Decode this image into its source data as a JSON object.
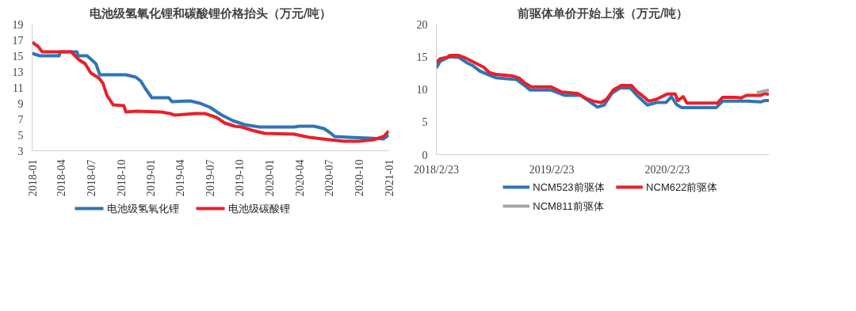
{
  "chart_data": [
    {
      "type": "line",
      "title": "电池级氢氧化锂和碳酸锂价格抬头（万元/吨）",
      "legend": "bottom",
      "grid": false,
      "marker": "none",
      "line_style": "solid",
      "xlim": [
        "2018-01-01",
        "2021-01-01"
      ],
      "xticks": [
        {
          "value": "2018-01-01",
          "label": "2018-01"
        },
        {
          "value": "2018-04-01",
          "label": "2018-04"
        },
        {
          "value": "2018-07-01",
          "label": "2018-07"
        },
        {
          "value": "2018-10-01",
          "label": "2018-10"
        },
        {
          "value": "2019-01-01",
          "label": "2019-01"
        },
        {
          "value": "2019-04-01",
          "label": "2019-04"
        },
        {
          "value": "2019-07-01",
          "label": "2019-07"
        },
        {
          "value": "2019-10-01",
          "label": "2019-10"
        },
        {
          "value": "2020-01-01",
          "label": "2020-01"
        },
        {
          "value": "2020-04-01",
          "label": "2020-04"
        },
        {
          "value": "2020-07-01",
          "label": "2020-07"
        },
        {
          "value": "2020-10-01",
          "label": "2020-10"
        },
        {
          "value": "2021-01-01",
          "label": "2021-01"
        }
      ],
      "ylim": [
        3,
        19
      ],
      "yticks": [
        3,
        5,
        7,
        9,
        11,
        13,
        15,
        17,
        19
      ],
      "series": [
        {
          "name": "电池级氢氧化锂",
          "color": "#2e75b6",
          "x": [
            "2018-01-01",
            "2018-01-25",
            "2018-03-25",
            "2018-03-28",
            "2018-05-19",
            "2018-05-22",
            "2018-06-19",
            "2018-07-16",
            "2018-07-28",
            "2018-10-16",
            "2018-11-16",
            "2018-12-01",
            "2018-12-16",
            "2019-01-04",
            "2019-02-25",
            "2019-03-07",
            "2019-05-01",
            "2019-06-01",
            "2019-07-01",
            "2019-08-07",
            "2019-09-10",
            "2019-10-16",
            "2019-12-01",
            "2020-03-16",
            "2020-04-01",
            "2020-05-16",
            "2020-06-16",
            "2020-07-04",
            "2020-07-19",
            "2020-09-01",
            "2020-11-01",
            "2020-12-16",
            "2021-01-01"
          ],
          "values": [
            15.3,
            15.0,
            15.0,
            15.5,
            15.5,
            15.0,
            15.0,
            14.0,
            12.6,
            12.6,
            12.3,
            11.8,
            10.8,
            9.7,
            9.7,
            9.2,
            9.3,
            9.0,
            8.5,
            7.5,
            6.8,
            6.3,
            6.0,
            6.0,
            6.1,
            6.1,
            5.8,
            5.3,
            4.8,
            4.7,
            4.6,
            4.5,
            5.0
          ]
        },
        {
          "name": "电池级碳酸锂",
          "color": "#e8202a",
          "x": [
            "2018-01-01",
            "2018-01-19",
            "2018-02-01",
            "2018-05-01",
            "2018-05-25",
            "2018-06-13",
            "2018-07-01",
            "2018-07-25",
            "2018-08-07",
            "2018-08-19",
            "2018-09-07",
            "2018-10-10",
            "2018-10-16",
            "2018-11-16",
            "2019-02-01",
            "2019-03-01",
            "2019-03-16",
            "2019-05-16",
            "2019-06-16",
            "2019-07-22",
            "2019-08-16",
            "2019-09-16",
            "2019-10-07",
            "2019-11-07",
            "2019-12-16",
            "2020-03-16",
            "2020-05-01",
            "2020-07-01",
            "2020-08-16",
            "2020-10-01",
            "2020-11-16",
            "2020-12-16",
            "2021-01-01"
          ],
          "values": [
            16.7,
            16.2,
            15.5,
            15.5,
            14.5,
            14.0,
            12.8,
            12.2,
            11.5,
            10.0,
            8.8,
            8.7,
            7.9,
            8.0,
            7.9,
            7.7,
            7.5,
            7.7,
            7.7,
            7.2,
            6.5,
            6.1,
            6.0,
            5.6,
            5.2,
            5.1,
            4.7,
            4.4,
            4.2,
            4.2,
            4.4,
            4.8,
            5.5
          ]
        }
      ]
    },
    {
      "type": "line",
      "title": "前驱体单价开始上涨（万元/吨）",
      "legend": "bottom",
      "grid": false,
      "marker": "none",
      "line_style": "solid",
      "xlim": [
        "2018-02-23",
        "2021-01-10"
      ],
      "xticks": [
        {
          "value": "2018-02-23",
          "label": "2018/2/23"
        },
        {
          "value": "2019-02-23",
          "label": "2019/2/23"
        },
        {
          "value": "2020-02-23",
          "label": "2020/2/23"
        }
      ],
      "ylim": [
        0,
        20
      ],
      "yticks": [
        0,
        5,
        10,
        15,
        20
      ],
      "series": [
        {
          "name": "NCM523前驱体",
          "color": "#2e75b6",
          "x": [
            "2018-02-23",
            "2018-03-07",
            "2018-04-06",
            "2018-05-05",
            "2018-05-30",
            "2018-06-16",
            "2018-07-11",
            "2018-08-09",
            "2018-08-30",
            "2018-11-04",
            "2018-11-29",
            "2018-12-16",
            "2019-02-21",
            "2019-04-04",
            "2019-05-24",
            "2019-06-18",
            "2019-07-17",
            "2019-08-07",
            "2019-09-01",
            "2019-09-26",
            "2019-10-29",
            "2019-11-19",
            "2019-12-22",
            "2020-01-20",
            "2020-02-19",
            "2020-03-07",
            "2020-03-23",
            "2020-04-09",
            "2020-07-26",
            "2020-08-16",
            "2020-10-30",
            "2020-12-15",
            "2020-12-27",
            "2021-01-09"
          ],
          "values": [
            13.3,
            14.3,
            15.0,
            14.9,
            14.1,
            13.7,
            12.8,
            12.2,
            11.8,
            11.5,
            10.6,
            9.9,
            9.9,
            9.1,
            9.1,
            8.3,
            7.3,
            7.6,
            9.4,
            10.2,
            10.2,
            9.1,
            7.6,
            8.0,
            8.0,
            8.9,
            7.7,
            7.2,
            7.2,
            8.2,
            8.2,
            8.1,
            8.3,
            8.3
          ]
        },
        {
          "name": "NCM622前驱体",
          "color": "#e8202a",
          "x": [
            "2018-02-23",
            "2018-03-07",
            "2018-03-28",
            "2018-04-06",
            "2018-05-05",
            "2018-05-22",
            "2018-06-16",
            "2018-07-02",
            "2018-07-23",
            "2018-08-09",
            "2018-08-30",
            "2018-10-19",
            "2018-11-13",
            "2018-11-29",
            "2018-12-20",
            "2019-02-21",
            "2019-03-26",
            "2019-05-15",
            "2019-06-09",
            "2019-07-04",
            "2019-07-29",
            "2019-08-15",
            "2019-09-05",
            "2019-09-30",
            "2019-11-02",
            "2019-11-19",
            "2019-12-10",
            "2019-12-26",
            "2020-01-20",
            "2020-02-23",
            "2020-03-19",
            "2020-03-27",
            "2020-04-13",
            "2020-04-25",
            "2020-07-30",
            "2020-08-16",
            "2020-09-27",
            "2020-10-13",
            "2020-10-30",
            "2020-12-15",
            "2020-12-27",
            "2021-01-09"
          ],
          "values": [
            14.1,
            14.7,
            14.9,
            15.2,
            15.2,
            14.9,
            14.3,
            13.9,
            13.4,
            12.6,
            12.3,
            12.1,
            11.7,
            11.0,
            10.4,
            10.4,
            9.6,
            9.4,
            8.7,
            8.2,
            8.0,
            8.5,
            9.9,
            10.6,
            10.6,
            9.7,
            8.9,
            8.2,
            8.5,
            9.3,
            9.3,
            8.3,
            8.9,
            7.9,
            7.9,
            8.8,
            8.8,
            8.7,
            9.1,
            9.1,
            9.4,
            9.2
          ]
        },
        {
          "name": "NCM811前驱体",
          "color": "#a6a6a6",
          "x": [
            "2020-12-02",
            "2021-01-09"
          ],
          "values": [
            9.5,
            9.9
          ]
        }
      ]
    }
  ]
}
